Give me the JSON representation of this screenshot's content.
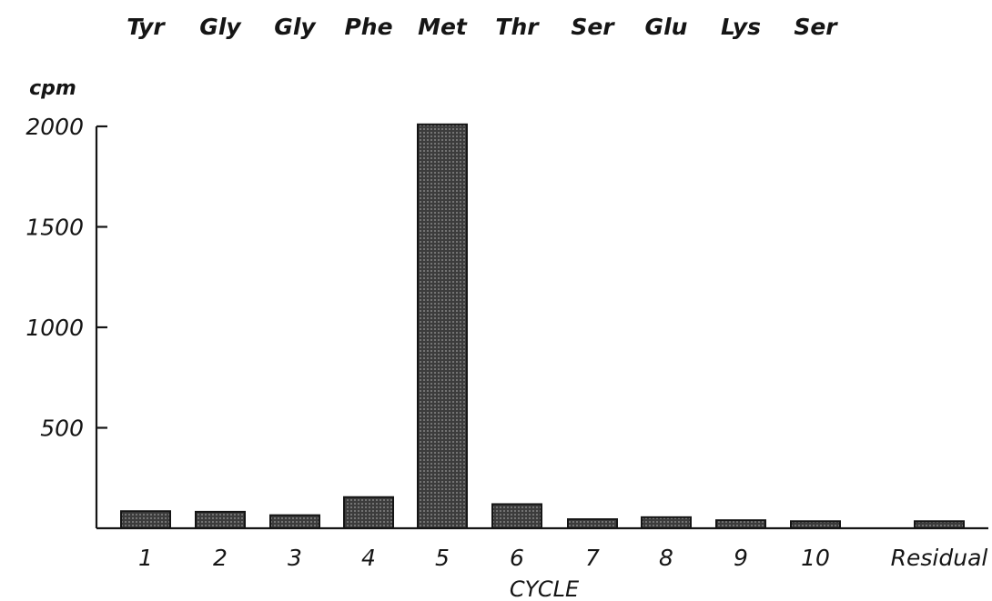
{
  "chart_data": {
    "type": "bar",
    "title": "",
    "xlabel": "CYCLE",
    "ylabel": "cpm",
    "categories": [
      "1",
      "2",
      "3",
      "4",
      "5",
      "6",
      "7",
      "8",
      "9",
      "10",
      "Residual"
    ],
    "residues": [
      "Tyr",
      "Gly",
      "Gly",
      "Phe",
      "Met",
      "Thr",
      "Ser",
      "Glu",
      "Lys",
      "Ser"
    ],
    "values": [
      85,
      82,
      65,
      155,
      2010,
      120,
      45,
      55,
      40,
      35,
      35
    ],
    "ylim": [
      0,
      2000
    ],
    "yticks": [
      500,
      1000,
      1500,
      2000
    ],
    "ytick_labels": [
      "500",
      "1000",
      "1500",
      "2000"
    ],
    "grid": false,
    "legend": "none",
    "bar_color": "#4a4a4a"
  }
}
